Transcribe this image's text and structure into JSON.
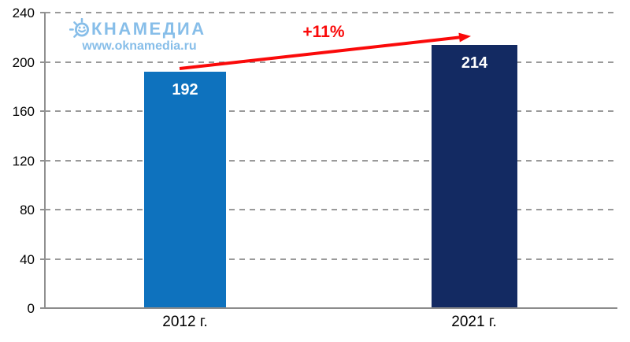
{
  "watermark": {
    "brand_full": "ОКНАМЕДИА",
    "brand_after_icon": "КНАМЕДИА",
    "url": "www.oknamedia.ru",
    "color": "#87BEE9"
  },
  "chart_data": {
    "type": "bar",
    "title": "",
    "xlabel": "",
    "ylabel": "",
    "categories": [
      "2012 г.",
      "2021 г."
    ],
    "values": [
      192,
      214
    ],
    "bar_colors": [
      "#0E72BE",
      "#132A62"
    ],
    "value_label_color": "#ffffff",
    "annotation": {
      "type": "trend-arrow",
      "label": "+11%",
      "color": "#FA0A0A"
    },
    "yticks": [
      240,
      200,
      160,
      120,
      80,
      40,
      0
    ],
    "ylim": [
      0,
      240
    ],
    "grid": "horizontal-dashed",
    "legend": "none"
  }
}
